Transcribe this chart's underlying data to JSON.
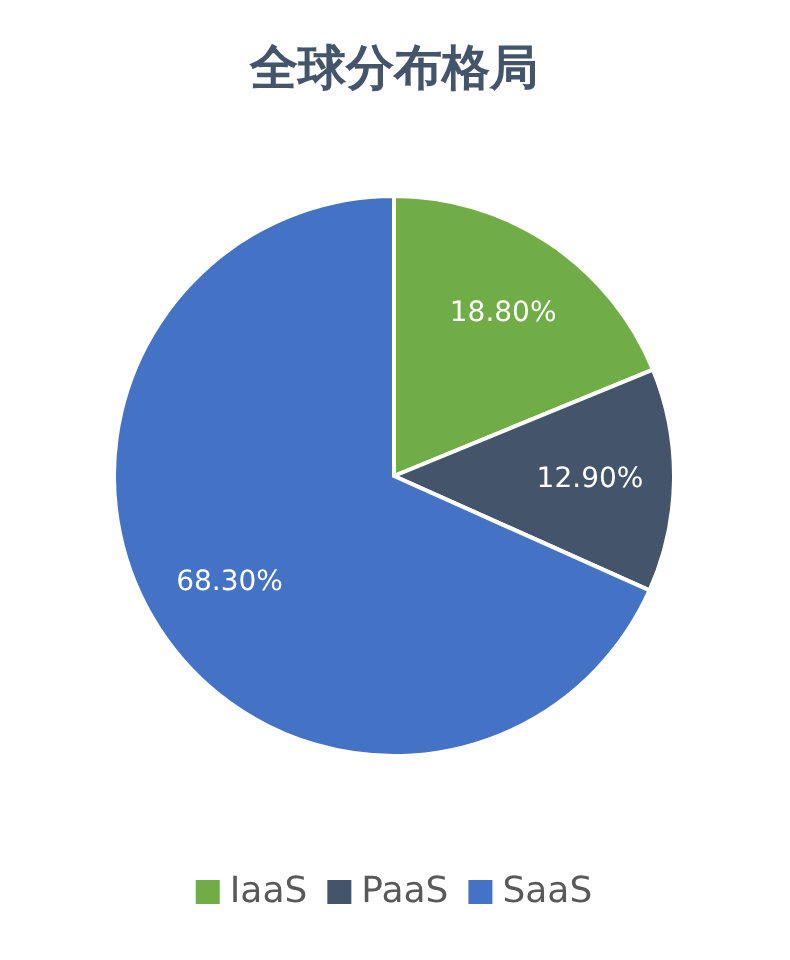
{
  "chart_data": {
    "type": "pie",
    "title": "全球分布格局",
    "categories": [
      "IaaS",
      "PaaS",
      "SaaS"
    ],
    "values": [
      18.8,
      12.9,
      68.3
    ],
    "colors": [
      "#70ad47",
      "#44546a",
      "#4472c4"
    ],
    "value_labels": [
      "18.80%",
      "12.90%",
      "68.30%"
    ],
    "legend": "bottom"
  }
}
